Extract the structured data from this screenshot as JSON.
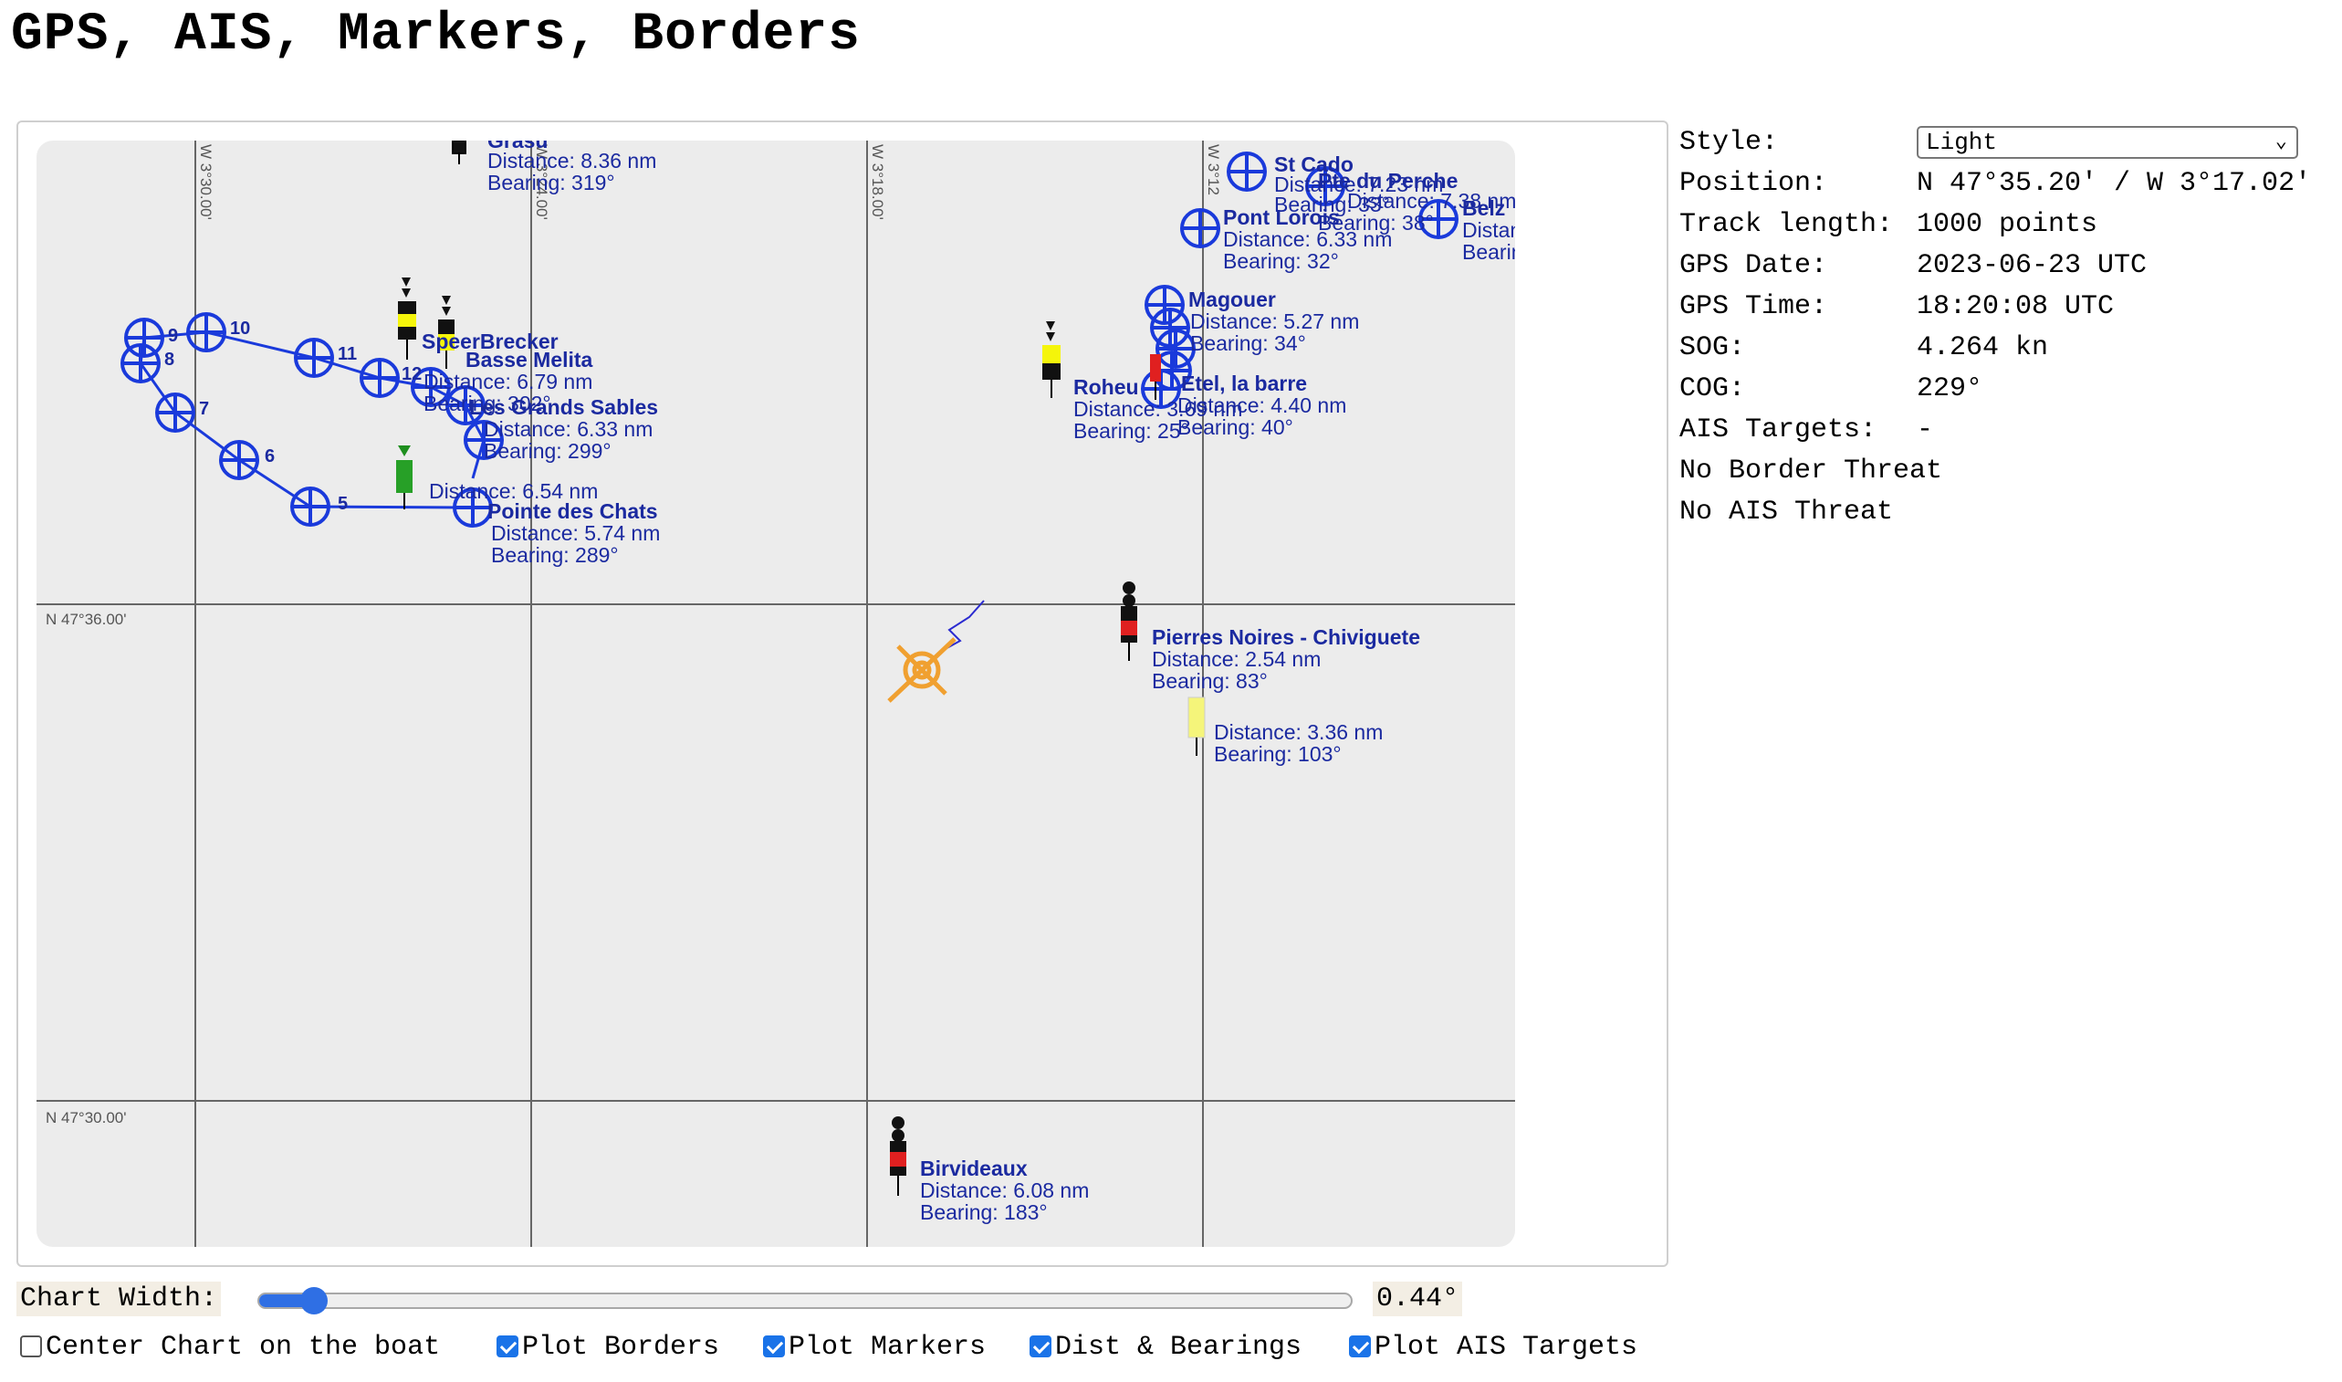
{
  "page": {
    "title": "GPS, AIS, Markers, Borders"
  },
  "chart": {
    "background": "#ececec",
    "grid_labels": {
      "lon": [
        "W 3°30.00'",
        "W 3°24.00'",
        "W 3°18.00'",
        "W 3°12"
      ],
      "lat": [
        "N 47°36.00'",
        "N 47°30.00'"
      ]
    },
    "border_points": [
      "5",
      "6",
      "7",
      "8",
      "9",
      "10",
      "11",
      "12"
    ],
    "markers": [
      {
        "name": "Grasu",
        "distance": "Distance: 8.36 nm",
        "bearing": "Bearing: 319°"
      },
      {
        "name": "SpeerBrecker",
        "distance": "Distance: 6.79 nm",
        "bearing": "Bearing: 302°"
      },
      {
        "name": "Basse Melita"
      },
      {
        "name": "Les Grands Sables",
        "distance": "Distance: 6.33 nm",
        "bearing": "Bearing: 299°"
      },
      {
        "name": "Pointe des Chats",
        "distance": "Distance: 5.74 nm",
        "bearing": "Bearing: 289°"
      },
      {
        "distance": "Distance: 6.54 nm"
      },
      {
        "name": "Roheu",
        "distance": "Distance: 3.69 nm",
        "bearing": "Bearing: 25°"
      },
      {
        "name": "Magouer",
        "distance": "Distance: 5.27 nm",
        "bearing": "Bearing: 34°"
      },
      {
        "name": "Etel, la barre",
        "distance": "Distance: 4.40 nm",
        "bearing": "Bearing: 40°"
      },
      {
        "name": "St Cado",
        "distance": "Distance: 7.23 nm",
        "bearing": "Bearing: 33°"
      },
      {
        "name": "Pte du Perche",
        "distance": "Distance: 7.38 nm",
        "bearing": "Bearing: 38°"
      },
      {
        "name": "Pont Lorois",
        "distance": "Distance: 6.33 nm",
        "bearing": "Bearing: 32°"
      },
      {
        "name": "Belz",
        "distance": "Distanc",
        "bearing": "Bearing"
      },
      {
        "name": "Pierres Noires - Chiviguete",
        "distance": "Distance: 2.54 nm",
        "bearing": "Bearing: 83°"
      },
      {
        "distance": "Distance: 3.36 nm",
        "bearing": "Bearing: 103°"
      },
      {
        "name": "Birvideaux",
        "distance": "Distance: 6.08 nm",
        "bearing": "Bearing: 183°"
      }
    ],
    "colors": {
      "border": "#1a3adb",
      "label": "#1b2aa0",
      "boat": "#f0a030",
      "grid": "#666666"
    }
  },
  "info": {
    "style": {
      "label": "Style:",
      "value": "Light"
    },
    "position": {
      "label": "Position:",
      "value": "N 47°35.20' / W 3°17.02'"
    },
    "track_length": {
      "label": "Track length:",
      "value": "1000 points"
    },
    "gps_date": {
      "label": "GPS Date:",
      "value": "2023-06-23 UTC"
    },
    "gps_time": {
      "label": "GPS Time:",
      "value": "18:20:08 UTC"
    },
    "sog": {
      "label": "SOG:",
      "value": "4.264 kn"
    },
    "cog": {
      "label": "COG:",
      "value": "229°"
    },
    "ais_targets": {
      "label": "AIS Targets:",
      "value": "-"
    },
    "border_threat": "No Border Threat",
    "ais_threat": "No AIS Threat"
  },
  "controls": {
    "chart_width": {
      "label": "Chart Width:",
      "value": "0.44°",
      "slider_fraction": 0.05
    },
    "checkboxes": [
      {
        "label": "Center Chart on the boat",
        "checked": false
      },
      {
        "label": "Plot Borders",
        "checked": true
      },
      {
        "label": "Plot Markers",
        "checked": true
      },
      {
        "label": "Dist & Bearings",
        "checked": true
      },
      {
        "label": "Plot AIS Targets",
        "checked": true
      }
    ]
  }
}
